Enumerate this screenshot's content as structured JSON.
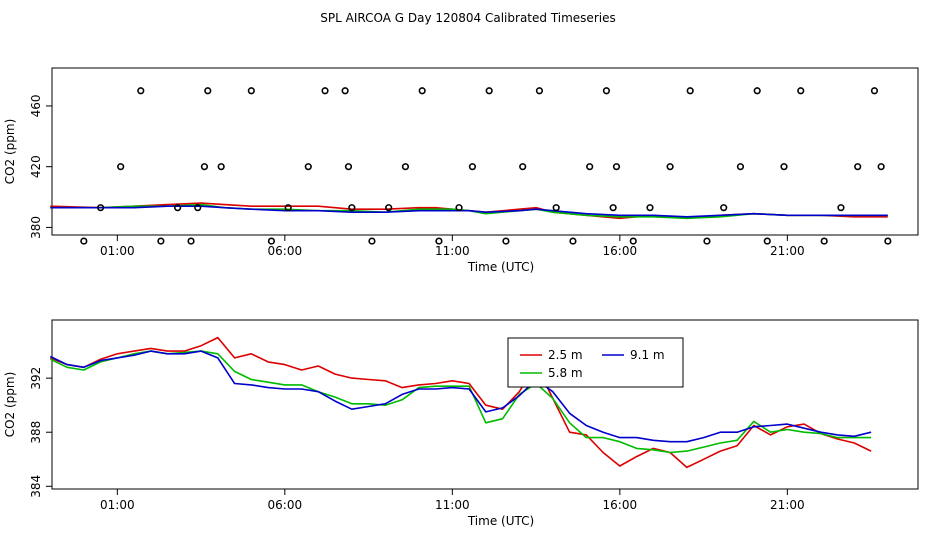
{
  "title": "SPL AIRCOA G  Day 120804  Calibrated Timeseries",
  "chart_data": [
    {
      "type": "scatter",
      "xlabel": "Time (UTC)",
      "ylabel": "CO2 (ppm)",
      "x_ticks": [
        "01:00",
        "06:00",
        "11:00",
        "16:00",
        "21:00"
      ],
      "x_tick_values": [
        1,
        6,
        11,
        16,
        21
      ],
      "xlim": [
        -0.95,
        24.9
      ],
      "y_ticks": [
        380,
        420,
        460
      ],
      "ylim": [
        375,
        485
      ],
      "series": [
        {
          "name": "2.5 m",
          "color": "#dd0000",
          "x": [
            -1,
            0.5,
            1.5,
            2.5,
            3.5,
            4.2,
            5,
            6,
            7,
            8,
            9,
            10,
            10.5,
            11,
            11.5,
            12,
            13,
            13.5,
            14,
            15,
            16,
            16.5,
            17,
            18,
            19,
            20,
            21,
            22,
            23,
            24
          ],
          "values": [
            394,
            393,
            394,
            395,
            396,
            395,
            394,
            394,
            394,
            392,
            392,
            393,
            393,
            392,
            391,
            390,
            392,
            393,
            390,
            388,
            386,
            387,
            388,
            386,
            388,
            389,
            388,
            388,
            387,
            387
          ]
        },
        {
          "name": "5.8 m",
          "color": "#00bb00",
          "x": [
            -1,
            0.5,
            1.5,
            2.5,
            3.5,
            4.2,
            5,
            6,
            7,
            8,
            9,
            10,
            10.5,
            11,
            11.5,
            12,
            13,
            13.5,
            14,
            15,
            16,
            16.5,
            17,
            18,
            19,
            20,
            21,
            22,
            23,
            24
          ],
          "values": [
            393,
            393,
            394,
            394,
            395,
            393,
            392,
            392,
            391,
            391,
            390,
            392,
            392,
            392,
            391,
            389,
            391,
            392,
            390,
            388,
            387,
            387,
            387,
            386,
            387,
            389,
            388,
            388,
            388,
            388
          ]
        },
        {
          "name": "9.1 m",
          "color": "#0000cc",
          "x": [
            -1,
            0.5,
            1.5,
            2.5,
            3.5,
            4.2,
            5,
            6,
            7,
            8,
            9,
            10,
            10.5,
            11,
            11.5,
            12,
            13,
            13.5,
            14,
            15,
            16,
            16.5,
            17,
            18,
            19,
            20,
            21,
            22,
            23,
            24
          ],
          "values": [
            393,
            393,
            393,
            394,
            394,
            393,
            392,
            391,
            391,
            390,
            390,
            391,
            391,
            391,
            391,
            390,
            391,
            392,
            391,
            389,
            388,
            388,
            388,
            387,
            388,
            389,
            388,
            388,
            388,
            388
          ]
        },
        {
          "name": "open-circles",
          "color": "#000000",
          "x": [
            0,
            0.5,
            1.1,
            1.7,
            2.3,
            2.8,
            3.2,
            3.4,
            3.6,
            3.7,
            4.1,
            5,
            5.6,
            6.1,
            6.7,
            7.2,
            7.8,
            7.9,
            8,
            8.6,
            9.1,
            9.6,
            10.1,
            10.6,
            11.2,
            11.6,
            12.1,
            12.6,
            13.1,
            13.6,
            14.1,
            14.6,
            15.1,
            15.6,
            15.8,
            15.9,
            16.4,
            16.9,
            17.5,
            18.1,
            18.6,
            19.1,
            19.6,
            20.1,
            20.4,
            20.9,
            21.4,
            22.1,
            22.6,
            23.1,
            23.6,
            23.8,
            24
          ],
          "values": [
            371,
            393,
            420,
            470,
            371,
            393,
            371,
            393,
            420,
            470,
            420,
            470,
            371,
            393,
            420,
            470,
            470,
            420,
            393,
            371,
            393,
            420,
            470,
            371,
            393,
            420,
            470,
            371,
            420,
            470,
            393,
            371,
            420,
            470,
            393,
            420,
            371,
            393,
            420,
            470,
            371,
            393,
            420,
            470,
            371,
            420,
            470,
            371,
            393,
            420,
            470,
            420,
            371
          ]
        }
      ]
    },
    {
      "type": "line",
      "xlabel": "Time (UTC)",
      "ylabel": "CO2 (ppm)",
      "x_ticks": [
        "01:00",
        "06:00",
        "11:00",
        "16:00",
        "21:00"
      ],
      "x_tick_values": [
        1,
        6,
        11,
        16,
        21
      ],
      "xlim": [
        -0.95,
        24.9
      ],
      "y_ticks": [
        384,
        388,
        392
      ],
      "ylim": [
        383.8,
        396.3
      ],
      "legend": {
        "position": "top-center"
      },
      "series": [
        {
          "name": "2.5 m",
          "color": "#dd0000",
          "x": [
            -1,
            -0.5,
            0,
            0.5,
            1,
            1.5,
            2,
            2.5,
            3,
            3.5,
            4,
            4.5,
            5,
            5.5,
            6,
            6.5,
            7,
            7.5,
            8,
            8.5,
            9,
            9.5,
            10,
            10.5,
            11,
            11.5,
            12,
            12.5,
            13,
            13.5,
            14,
            14.5,
            15,
            15.5,
            16,
            16.5,
            17,
            17.5,
            18,
            18.5,
            19,
            19.5,
            20,
            20.5,
            21,
            21.5,
            22,
            22.5,
            23,
            23.5
          ],
          "values": [
            393.5,
            393.0,
            392.8,
            393.4,
            393.8,
            394.0,
            394.2,
            394.0,
            394.0,
            394.4,
            395.0,
            393.5,
            393.8,
            393.2,
            393.0,
            392.6,
            392.9,
            392.3,
            392.0,
            391.9,
            391.8,
            391.3,
            391.5,
            391.6,
            391.8,
            391.6,
            390.0,
            389.7,
            391.0,
            393.0,
            390.5,
            388.0,
            387.8,
            386.5,
            385.5,
            386.2,
            386.8,
            386.5,
            385.4,
            386.0,
            386.6,
            387.0,
            388.5,
            387.8,
            388.4,
            388.6,
            387.9,
            387.5,
            387.2,
            386.6
          ]
        },
        {
          "name": "5.8 m",
          "color": "#00bb00",
          "x": [
            -1,
            -0.5,
            0,
            0.5,
            1,
            1.5,
            2,
            2.5,
            3,
            3.5,
            4,
            4.5,
            5,
            5.5,
            6,
            6.5,
            7,
            7.5,
            8,
            8.5,
            9,
            9.5,
            10,
            10.5,
            11,
            11.5,
            12,
            12.5,
            13,
            13.5,
            14,
            14.5,
            15,
            15.5,
            16,
            16.5,
            17,
            17.5,
            18,
            18.5,
            19,
            19.5,
            20,
            20.5,
            21,
            21.5,
            22,
            22.5,
            23,
            23.5
          ],
          "values": [
            393.4,
            392.8,
            392.6,
            393.2,
            393.5,
            393.8,
            394.0,
            393.8,
            393.9,
            394.0,
            393.8,
            392.5,
            391.9,
            391.7,
            391.5,
            391.5,
            391.0,
            390.6,
            390.1,
            390.1,
            390.0,
            390.4,
            391.3,
            391.4,
            391.4,
            391.4,
            388.7,
            389.0,
            390.8,
            391.6,
            390.5,
            388.7,
            387.6,
            387.6,
            387.3,
            386.8,
            386.7,
            386.5,
            386.6,
            386.9,
            387.2,
            387.4,
            388.8,
            388.0,
            388.2,
            388.0,
            387.9,
            387.6,
            387.6,
            387.6
          ]
        },
        {
          "name": "9.1 m",
          "color": "#0000cc",
          "x": [
            -1,
            -0.5,
            0,
            0.5,
            1,
            1.5,
            2,
            2.5,
            3,
            3.5,
            4,
            4.5,
            5,
            5.5,
            6,
            6.5,
            7,
            7.5,
            8,
            8.5,
            9,
            9.5,
            10,
            10.5,
            11,
            11.5,
            12,
            12.5,
            13,
            13.5,
            14,
            14.5,
            15,
            15.5,
            16,
            16.5,
            17,
            17.5,
            18,
            18.5,
            19,
            19.5,
            20,
            20.5,
            21,
            21.5,
            22,
            22.5,
            23,
            23.5
          ],
          "values": [
            393.6,
            393.0,
            392.8,
            393.3,
            393.5,
            393.7,
            394.0,
            393.8,
            393.8,
            394.0,
            393.5,
            391.6,
            391.5,
            391.3,
            391.2,
            391.2,
            391.0,
            390.3,
            389.7,
            389.9,
            390.1,
            390.8,
            391.2,
            391.2,
            391.3,
            391.2,
            389.5,
            389.8,
            390.7,
            391.9,
            391.0,
            389.4,
            388.5,
            388.0,
            387.6,
            387.6,
            387.4,
            387.3,
            387.3,
            387.6,
            388.0,
            388.0,
            388.4,
            388.5,
            388.6,
            388.3,
            388.0,
            387.8,
            387.7,
            388.0
          ]
        }
      ]
    }
  ]
}
